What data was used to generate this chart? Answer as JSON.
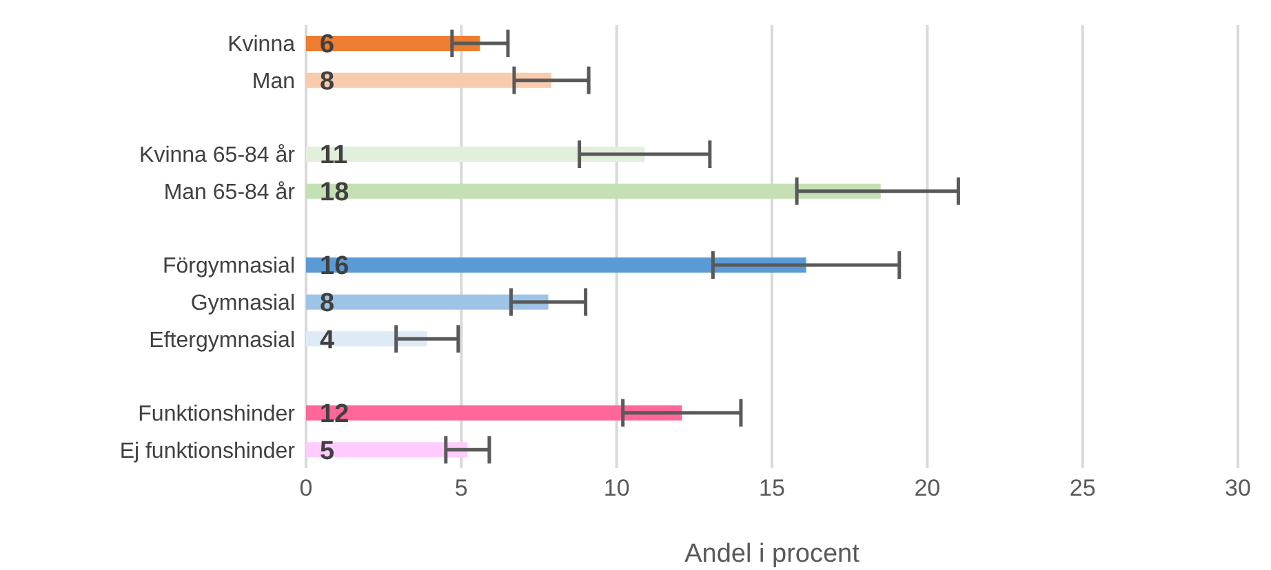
{
  "chart_data": {
    "type": "bar",
    "orientation": "horizontal",
    "xlabel": "Andel i procent",
    "categories": [
      "Kvinna",
      "Man",
      null,
      "Kvinna 65-84 år",
      "Man 65-84 år",
      null,
      "Förgymnasial",
      "Gymnasial",
      "Eftergymnasial",
      null,
      "Funktionshinder",
      "Ej funktionshinder"
    ],
    "values": [
      5.6,
      7.9,
      null,
      10.9,
      18.5,
      null,
      16.1,
      7.8,
      3.9,
      null,
      12.1,
      5.2
    ],
    "colors": [
      "#ed7d31",
      "#f8cbad",
      "#ffffff",
      "#e2efda",
      "#c5e0b4",
      "#ffffff",
      "#5b9bd5",
      "#9dc3e6",
      "#deebf7",
      "#ffffff",
      "#ff6699",
      "#ffccff"
    ],
    "errors": [
      [
        4.7,
        6.5
      ],
      [
        6.7,
        9.1
      ],
      null,
      [
        8.8,
        13.0
      ],
      [
        15.8,
        21.0
      ],
      null,
      [
        13.1,
        19.1
      ],
      [
        6.6,
        9.0
      ],
      [
        2.9,
        4.9
      ],
      null,
      [
        10.2,
        14.0
      ],
      [
        4.5,
        5.9
      ]
    ],
    "value_labels": [
      "6",
      "8",
      null,
      "11",
      "18",
      null,
      "16",
      "8",
      "4",
      null,
      "12",
      "5"
    ],
    "xlim": [
      0,
      30
    ],
    "xticks": [
      0,
      5,
      10,
      15,
      20,
      25,
      30
    ],
    "grid": "x",
    "legend": false
  }
}
